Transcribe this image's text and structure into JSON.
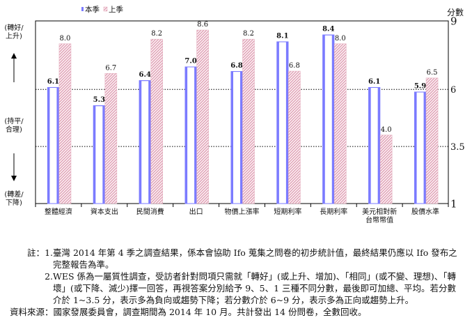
{
  "chart_data": {
    "type": "bar",
    "legend": [
      "本季",
      "上季"
    ],
    "y_unit": "分數",
    "y_ticks": [
      "9",
      "6",
      "3.5",
      "1"
    ],
    "ylim": [
      1,
      9
    ],
    "reference_lines": [
      6,
      3.5
    ],
    "side_labels": {
      "top": [
        "(轉好/",
        "上升)"
      ],
      "middle": [
        "(持平/",
        "合理)"
      ],
      "bottom": [
        "(轉差/",
        "下降)"
      ]
    },
    "categories": [
      [
        "整體經濟"
      ],
      [
        "資本支出"
      ],
      [
        "民間消費"
      ],
      [
        "出口"
      ],
      [
        "物價上漲率"
      ],
      [
        "短期利率"
      ],
      [
        "長期利率"
      ],
      [
        "美元相對新",
        "台幣幣值"
      ],
      [
        "股價水準"
      ]
    ],
    "series": [
      {
        "name": "本季",
        "values": [
          6.1,
          5.3,
          6.4,
          7.0,
          6.8,
          8.1,
          8.4,
          6.1,
          5.9
        ],
        "labels": [
          "6.1",
          "5.3",
          "6.4",
          "7.0",
          "6.8",
          "8.1",
          "8.4",
          "6.1",
          "5.9"
        ]
      },
      {
        "name": "上季",
        "values": [
          8.0,
          6.7,
          8.2,
          8.6,
          8.2,
          6.8,
          8.0,
          4.0,
          6.5
        ],
        "labels": [
          "8.0",
          "6.7",
          "8.2",
          "8.6",
          "8.2",
          "6.8",
          "8.0",
          "4.0",
          "6.5"
        ]
      }
    ],
    "colors": {
      "current": "#7b7bff",
      "previous": "#e6b3c2"
    }
  },
  "notes": {
    "label": "註：",
    "items": [
      {
        "num": "1.",
        "text": "臺灣 2014 年第 4 季之調查結果，係本會協助 Ifo 蒐集之問卷的初步統計值，最終結果仍應以 Ifo 發布之完整報告為準。"
      },
      {
        "num": "2.",
        "text": "WES 係為一屬質性調查，受訪者針對問項只需就「轉好」(或上升、增加)、「相同」(或不變、理想)、「轉壞」(或下降、減少)擇一回答，再視答案分別給予 9、5、1 三種不同分數，最後即可加總、平均。若分數介於 1~3.5 分，表示多為負向或趨勢下降；若分數介於 6~9 分，表示多為正向或趨勢上升。"
      }
    ],
    "source": "資料來源：國家發展委員會，調查期間為 2014 年 10 月。共計發出 14 份問卷，全數回收。"
  }
}
